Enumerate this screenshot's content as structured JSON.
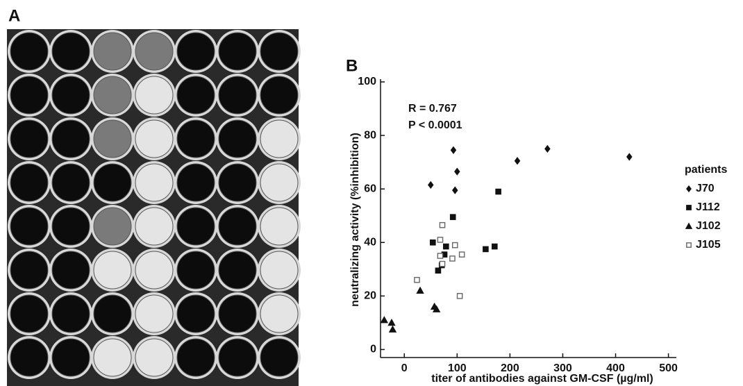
{
  "figure": {
    "labels": [
      "A",
      "B"
    ]
  },
  "chart_data": {
    "type": "scatter",
    "x_label": "titer of antibodies against GM-CSF (µg/ml)",
    "y_label": "neutralizing activity (%inhibition)",
    "annotations": [
      "R = 0.767",
      "P < 0.0001"
    ],
    "legend_title": "patients",
    "xlim": [
      -45,
      515
    ],
    "ylim": [
      -3,
      100
    ],
    "xticks": [
      0,
      100,
      200,
      300,
      400,
      500
    ],
    "yticks": [
      0,
      20,
      40,
      60,
      80,
      100
    ],
    "series": [
      {
        "name": "J70",
        "color": "#111111",
        "marker": "diamond",
        "filled": true,
        "x": [
          50,
          93,
          100,
          96,
          214,
          271,
          426
        ],
        "values": [
          61.5,
          74.5,
          66.5,
          59.5,
          70.5,
          75,
          72
        ]
      },
      {
        "name": "J112",
        "color": "#111111",
        "marker": "square",
        "filled": true,
        "x": [
          178,
          92,
          54,
          79,
          76,
          71,
          64,
          154,
          171
        ],
        "values": [
          59,
          49.5,
          40,
          38.5,
          35.5,
          31.5,
          29.5,
          37.5,
          38.5
        ]
      },
      {
        "name": "J102",
        "color": "#111111",
        "marker": "triangle",
        "filled": true,
        "x": [
          -38,
          -24,
          -22,
          30,
          57,
          61
        ],
        "values": [
          11,
          10,
          7.5,
          22,
          16,
          15
        ]
      },
      {
        "name": "J105",
        "color": "#666666",
        "marker": "square",
        "filled": false,
        "x": [
          24,
          72,
          68,
          68,
          72,
          91,
          109,
          96,
          105
        ],
        "values": [
          26,
          46.5,
          41,
          35,
          32,
          34,
          35.5,
          39,
          20
        ]
      }
    ]
  }
}
